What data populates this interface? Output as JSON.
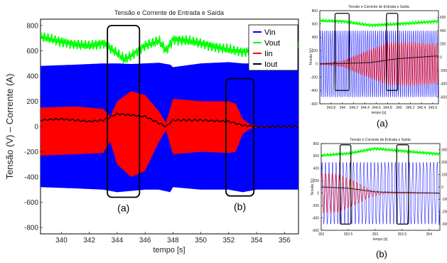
{
  "chart_data": [
    {
      "type": "line",
      "panel": "main",
      "title": "Tensão e Corrente de Entrada e Saída",
      "xlabel": "tempo [s]",
      "ylabel": "Tensão (V) – Corrente (A)",
      "xlim": [
        338.5,
        357
      ],
      "ylim": [
        -850,
        850
      ],
      "x_ticks": [
        340,
        342,
        344,
        346,
        348,
        350,
        352,
        354,
        356
      ],
      "y_ticks": [
        -800,
        -600,
        -400,
        -200,
        0,
        200,
        400,
        600,
        800
      ],
      "grid": false,
      "legend_position": "top-right",
      "series": [
        {
          "name": "Vin",
          "color": "#0000ff",
          "x": [
            338.5,
            341,
            343,
            344,
            345,
            346,
            347,
            347.8,
            348,
            350,
            352,
            353,
            354,
            356,
            357
          ],
          "upper": [
            480,
            490,
            500,
            500,
            495,
            500,
            505,
            490,
            470,
            500,
            510,
            500,
            500,
            500,
            505
          ],
          "lower": [
            -480,
            -490,
            -500,
            -520,
            -510,
            -500,
            -500,
            -520,
            -480,
            -500,
            -500,
            -520,
            -500,
            -500,
            -500
          ]
        },
        {
          "name": "Vout",
          "color": "#00ff00",
          "x": [
            338.5,
            339,
            340,
            341,
            342,
            343,
            343.5,
            344,
            344.5,
            345,
            346,
            347,
            347.5,
            348,
            349,
            350,
            351,
            352,
            353,
            354,
            355,
            356,
            357
          ],
          "values": [
            710,
            700,
            670,
            650,
            640,
            660,
            620,
            580,
            530,
            560,
            640,
            680,
            600,
            690,
            680,
            660,
            630,
            610,
            590,
            600,
            620,
            640,
            630
          ]
        },
        {
          "name": "Iin",
          "color": "#ff0000",
          "x": [
            338.5,
            341,
            343,
            343.5,
            344,
            345,
            346,
            347,
            347.5,
            348,
            350,
            352,
            352.5,
            353,
            353.5,
            354,
            355,
            357
          ],
          "upper": [
            150,
            160,
            140,
            80,
            200,
            280,
            250,
            120,
            30,
            220,
            200,
            200,
            180,
            60,
            20,
            5,
            3,
            3
          ],
          "lower": [
            -230,
            -220,
            -210,
            -120,
            -300,
            -400,
            -350,
            -120,
            -30,
            -220,
            -200,
            -210,
            -200,
            -60,
            -20,
            -5,
            -3,
            -3
          ]
        },
        {
          "name": "Iout",
          "color": "#000000",
          "x": [
            338.5,
            340,
            342,
            343,
            344,
            345,
            346,
            347.5,
            348,
            350,
            352,
            353,
            354,
            357
          ],
          "values": [
            50,
            60,
            40,
            50,
            100,
            90,
            80,
            0,
            50,
            50,
            40,
            10,
            0,
            0
          ]
        }
      ],
      "annotations": [
        {
          "label": "(a)",
          "x_range": [
            343.3,
            345.6
          ],
          "y_range": [
            -560,
            800
          ]
        },
        {
          "label": "(b)",
          "x_range": [
            351.8,
            353.8
          ],
          "y_range": [
            -550,
            380
          ]
        }
      ]
    },
    {
      "type": "line",
      "panel": "(a)",
      "title": "Tensão e Corrente de Entrada e Saída",
      "xlabel": "tempo [s]",
      "ylabel": "Tensão [V]",
      "xlim": [
        343.6,
        345.7
      ],
      "ylim": [
        -600,
        800
      ],
      "x_ticks": [
        343.8,
        344,
        344.2,
        344.4,
        344.6,
        344.8,
        345,
        345.2,
        345.4,
        345.6
      ],
      "y_ticks": [
        -600,
        -400,
        -200,
        0,
        200,
        400,
        600,
        800
      ],
      "y2_ticks": [
        -600,
        -400,
        -200,
        0,
        200,
        400,
        600
      ],
      "series": [
        {
          "name": "Vin",
          "color": "#0000ff",
          "amplitude": 500
        },
        {
          "name": "Vout",
          "color": "#00ff00",
          "x": [
            343.6,
            344,
            344.5,
            345,
            345.7
          ],
          "values": [
            650,
            640,
            580,
            600,
            640
          ]
        },
        {
          "name": "Iin",
          "color": "#ff0000",
          "x": [
            343.6,
            344,
            344.3,
            344.8,
            345.2,
            345.7
          ],
          "upper": [
            10,
            40,
            150,
            320,
            330,
            300
          ],
          "lower": [
            -10,
            -40,
            -150,
            -320,
            -330,
            -300
          ]
        },
        {
          "name": "Iout",
          "color": "#000000",
          "x": [
            343.6,
            344,
            344.5,
            345,
            345.7
          ],
          "values": [
            0,
            5,
            20,
            80,
            120
          ]
        }
      ],
      "annotations": [
        {
          "label": "",
          "x_range": [
            343.87,
            344.12
          ],
          "y_range": [
            -400,
            760
          ]
        },
        {
          "label": "",
          "x_range": [
            344.78,
            344.98
          ],
          "y_range": [
            -400,
            760
          ]
        }
      ],
      "caption": "(a)"
    },
    {
      "type": "line",
      "panel": "(b)",
      "title": "Tensão e Corrente de Entrada e Saída",
      "xlabel": "tempo [s]",
      "ylabel": "Tensão [V]",
      "xlim": [
        352,
        354.2
      ],
      "ylim": [
        -600,
        800
      ],
      "x_ticks": [
        352,
        352.5,
        353,
        353.5,
        354
      ],
      "y_ticks": [
        -600,
        -400,
        -200,
        0,
        200,
        400,
        600,
        800
      ],
      "y2_ticks": [
        -300,
        -200,
        -100,
        0,
        100,
        200,
        300
      ],
      "series": [
        {
          "name": "Vin",
          "color": "#0000ff",
          "amplitude": 500
        },
        {
          "name": "Vout",
          "color": "#00ff00",
          "x": [
            352,
            352.5,
            353,
            353.5,
            354.2
          ],
          "values": [
            610,
            640,
            720,
            680,
            630
          ]
        },
        {
          "name": "Iin",
          "color": "#ff0000",
          "x": [
            352,
            352.3,
            352.6,
            352.9,
            353.2,
            354.2
          ],
          "upper": [
            320,
            310,
            200,
            60,
            5,
            3
          ],
          "lower": [
            -320,
            -310,
            -200,
            -60,
            -5,
            -3
          ]
        },
        {
          "name": "Iout",
          "color": "#000000",
          "x": [
            352,
            352.5,
            353,
            354.2
          ],
          "values": [
            100,
            80,
            20,
            0
          ]
        }
      ],
      "annotations": [
        {
          "label": "",
          "x_range": [
            352.35,
            352.55
          ],
          "y_range": [
            -500,
            780
          ]
        },
        {
          "label": "",
          "x_range": [
            353.4,
            353.62
          ],
          "y_range": [
            -500,
            780
          ]
        }
      ],
      "caption": "(b)"
    }
  ]
}
